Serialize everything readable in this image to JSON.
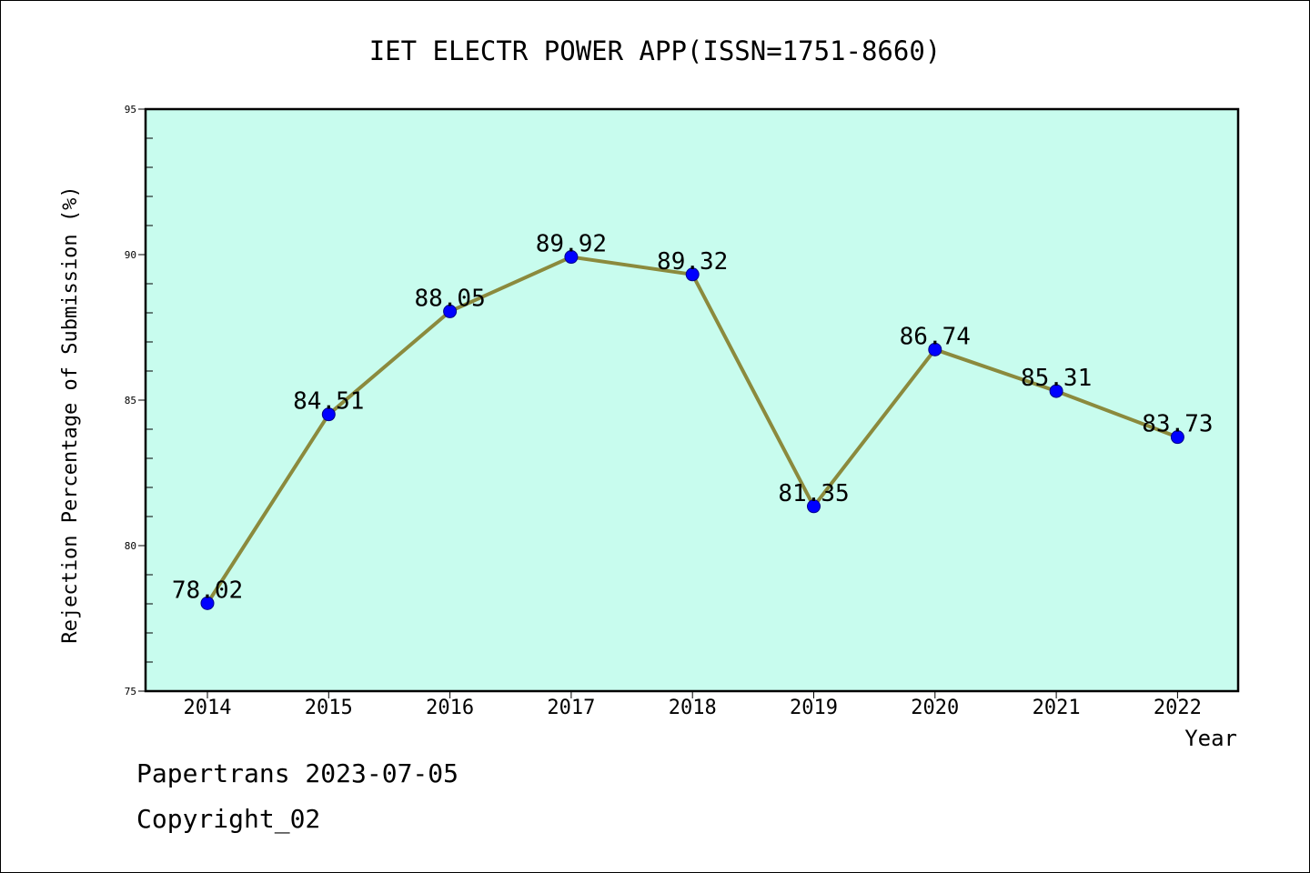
{
  "chart_data": {
    "type": "line",
    "title": "IET ELECTR POWER APP(ISSN=1751-8660)",
    "xlabel": "Year",
    "ylabel": "Rejection Percentage of Submission (%)",
    "categories": [
      "2014",
      "2015",
      "2016",
      "2017",
      "2018",
      "2019",
      "2020",
      "2021",
      "2022"
    ],
    "values": [
      78.02,
      84.51,
      88.05,
      89.92,
      89.32,
      81.35,
      86.74,
      85.31,
      83.73
    ],
    "data_labels": [
      "78.02",
      "84.51",
      "88.05",
      "89.92",
      "89.32",
      "81.35",
      "86.74",
      "85.31",
      "83.73"
    ],
    "ylim": [
      75,
      95
    ],
    "yticks": [
      75,
      80,
      85,
      90,
      95
    ],
    "grid": false,
    "legend": "none",
    "colors": {
      "plot_background": "#c8fcee",
      "line": "#8b8a3d",
      "marker": "#0000ff",
      "marker_edge": "#00008b"
    }
  },
  "footer": {
    "line1": "Papertrans 2023-07-05",
    "line2": "Copyright_02"
  }
}
